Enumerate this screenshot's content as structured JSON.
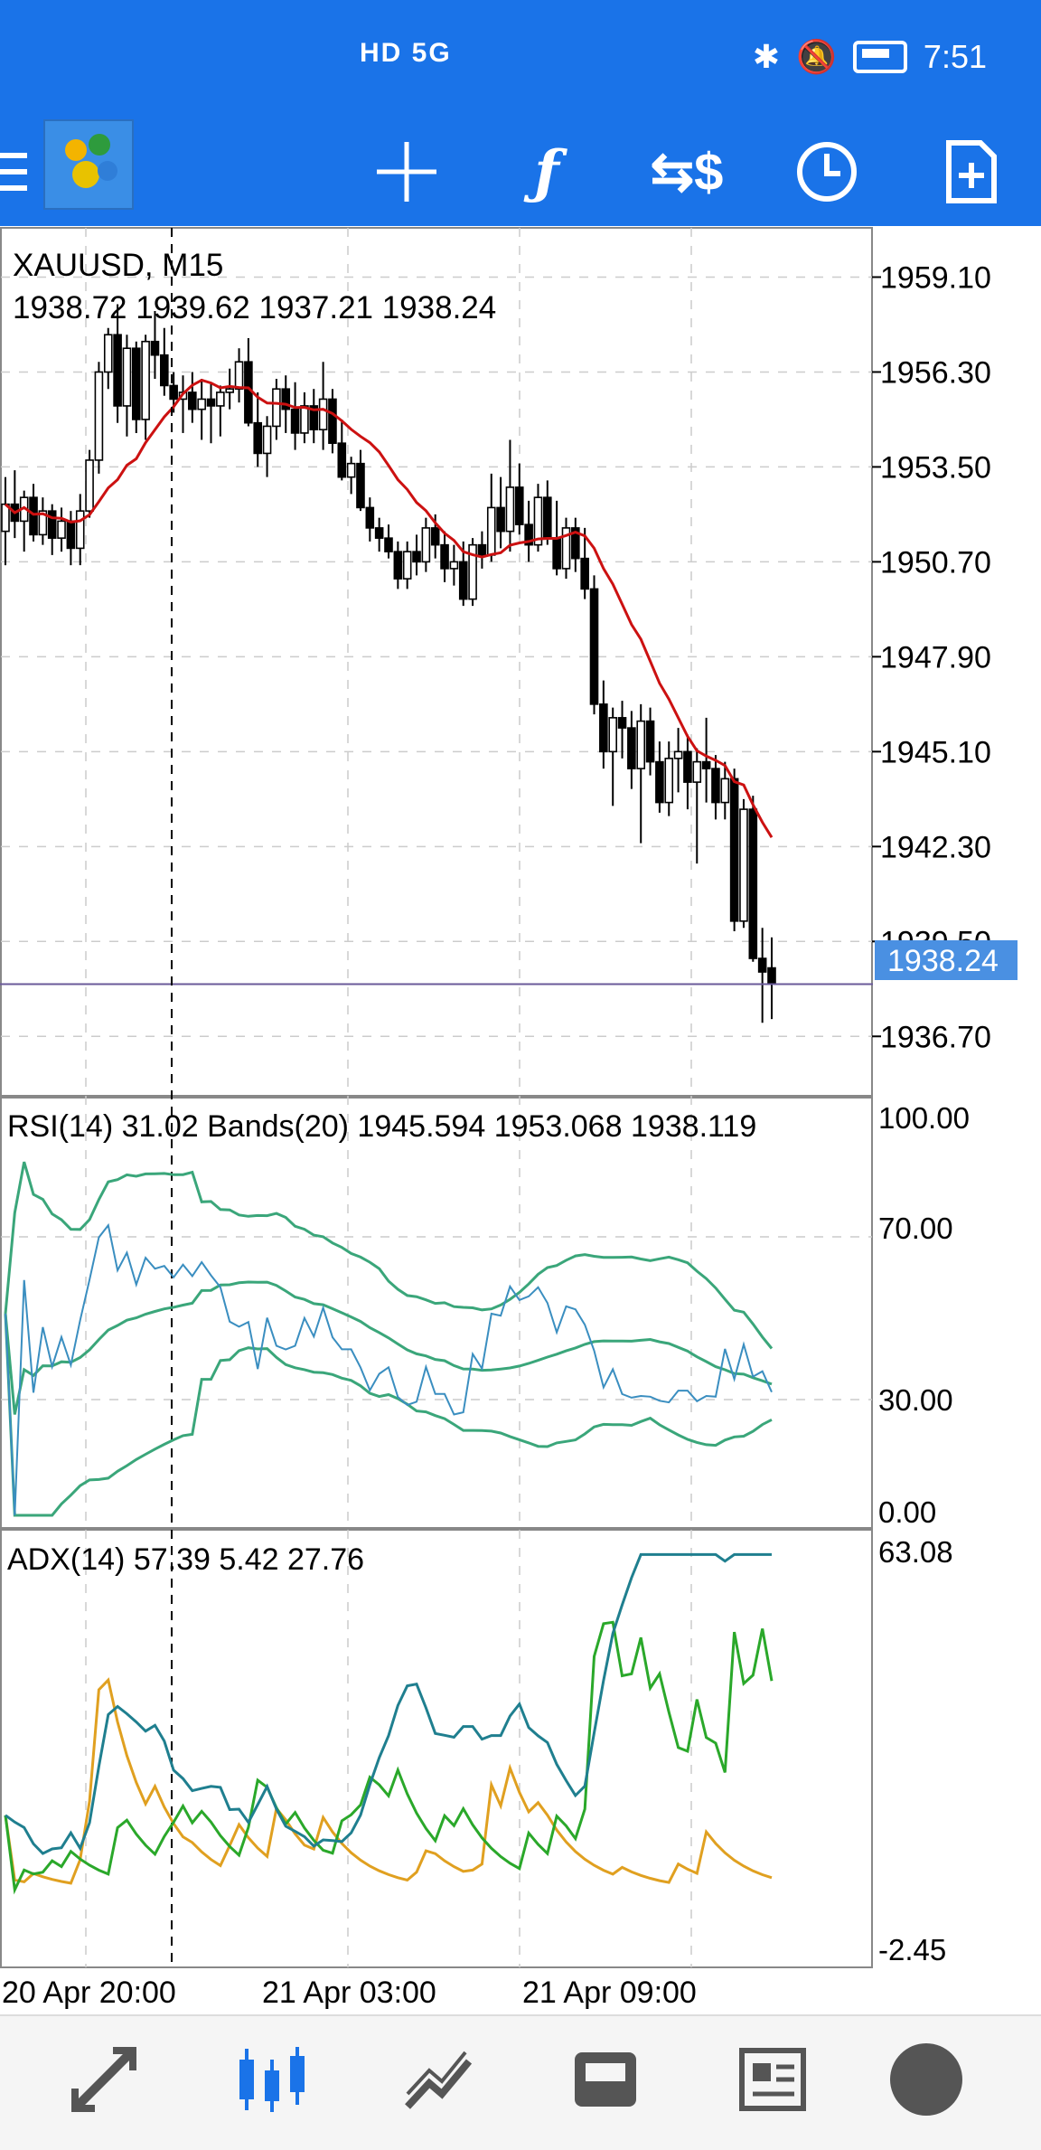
{
  "status": {
    "network": "HD 5G",
    "time": "7:51"
  },
  "toolbar": {
    "icons": [
      "menu-icon",
      "app-logo",
      "crosshair-icon",
      "indicators-icon",
      "trade-icon",
      "timeframe-icon",
      "new-order-icon"
    ]
  },
  "chart": {
    "symbol": "XAUUSD, M15",
    "ohlc": "1938.72 1939.62 1937.21 1938.24",
    "current_price": "1938.24",
    "price_labels": [
      "1959.10",
      "1956.30",
      "1953.50",
      "1950.70",
      "1947.90",
      "1945.10",
      "1942.30",
      "1939.50",
      "1936.70"
    ],
    "rsi_label": "RSI(14) 31.02 Bands(20) 1945.594 1953.068 1938.119",
    "rsi_levels": [
      "100.00",
      "70.00",
      "30.00",
      "0.00"
    ],
    "adx_label": "ADX(14) 57.39 5.42 27.76",
    "adx_levels": [
      "63.08",
      "-2.45"
    ],
    "time_labels": [
      "20 Apr 20:00",
      "21 Apr 03:00",
      "21 Apr 09:00"
    ],
    "colors": {
      "bull": "#ffffff",
      "bear": "#000000",
      "ma": "#cc1111",
      "rsi": "#3a8ec0",
      "bands": "#3aa67a",
      "adx_main": "#1f7f8f",
      "adx_plus": "#e0a020",
      "adx_minus": "#2aa82a",
      "price_tag": "#4a90e2"
    }
  },
  "chart_data": {
    "type": "candlestick",
    "title": "XAUUSD, M15",
    "ylim": [
      1935.0,
      1960.5
    ],
    "candles": [
      [
        1951.6,
        1953.2,
        1950.6,
        1952.4
      ],
      [
        1952.4,
        1953.4,
        1951.4,
        1951.9
      ],
      [
        1951.9,
        1952.8,
        1951.0,
        1952.6
      ],
      [
        1952.6,
        1953.0,
        1951.3,
        1951.5
      ],
      [
        1951.5,
        1952.6,
        1951.2,
        1952.2
      ],
      [
        1952.2,
        1952.4,
        1950.9,
        1951.4
      ],
      [
        1951.4,
        1952.3,
        1951.0,
        1951.9
      ],
      [
        1951.9,
        1952.2,
        1950.6,
        1951.1
      ],
      [
        1951.1,
        1952.7,
        1950.6,
        1952.2
      ],
      [
        1952.2,
        1954.0,
        1952.0,
        1953.7
      ],
      [
        1953.7,
        1956.6,
        1953.3,
        1956.3
      ],
      [
        1956.3,
        1957.6,
        1955.8,
        1957.4
      ],
      [
        1957.4,
        1958.3,
        1954.8,
        1955.3
      ],
      [
        1955.3,
        1957.4,
        1954.4,
        1957.0
      ],
      [
        1957.0,
        1957.2,
        1954.5,
        1954.9
      ],
      [
        1954.9,
        1957.4,
        1954.3,
        1957.2
      ],
      [
        1957.2,
        1958.1,
        1956.1,
        1956.8
      ],
      [
        1956.8,
        1957.6,
        1955.6,
        1955.9
      ],
      [
        1955.9,
        1956.3,
        1955.1,
        1955.5
      ],
      [
        1955.5,
        1956.2,
        1954.5,
        1955.7
      ],
      [
        1955.7,
        1956.3,
        1954.8,
        1955.2
      ],
      [
        1955.2,
        1956.1,
        1954.3,
        1955.5
      ],
      [
        1955.5,
        1956.0,
        1954.2,
        1955.3
      ],
      [
        1955.3,
        1955.9,
        1954.4,
        1955.7
      ],
      [
        1955.7,
        1956.4,
        1955.2,
        1955.8
      ],
      [
        1955.8,
        1957.0,
        1955.4,
        1956.6
      ],
      [
        1956.6,
        1957.3,
        1954.7,
        1954.8
      ],
      [
        1954.8,
        1955.7,
        1953.5,
        1953.9
      ],
      [
        1953.9,
        1955.0,
        1953.2,
        1954.7
      ],
      [
        1954.7,
        1956.1,
        1954.3,
        1955.8
      ],
      [
        1955.8,
        1956.2,
        1954.5,
        1955.2
      ],
      [
        1955.2,
        1956.0,
        1954.0,
        1954.5
      ],
      [
        1954.5,
        1955.7,
        1954.2,
        1955.3
      ],
      [
        1955.3,
        1955.8,
        1954.2,
        1954.6
      ],
      [
        1954.6,
        1956.6,
        1954.0,
        1955.5
      ],
      [
        1955.5,
        1955.8,
        1953.9,
        1954.2
      ],
      [
        1954.2,
        1954.9,
        1953.1,
        1953.2
      ],
      [
        1953.2,
        1953.8,
        1952.7,
        1953.6
      ],
      [
        1953.6,
        1954.0,
        1952.2,
        1952.3
      ],
      [
        1952.3,
        1952.6,
        1951.3,
        1951.7
      ],
      [
        1951.7,
        1952.0,
        1951.0,
        1951.4
      ],
      [
        1951.4,
        1951.8,
        1950.8,
        1951.0
      ],
      [
        1951.0,
        1951.3,
        1949.9,
        1950.2
      ],
      [
        1950.2,
        1951.3,
        1949.9,
        1951.0
      ],
      [
        1951.0,
        1951.5,
        1950.3,
        1950.7
      ],
      [
        1950.7,
        1952.0,
        1950.4,
        1951.7
      ],
      [
        1951.7,
        1952.1,
        1950.8,
        1951.2
      ],
      [
        1951.2,
        1951.6,
        1950.1,
        1950.5
      ],
      [
        1950.5,
        1951.2,
        1950.0,
        1950.7
      ],
      [
        1950.7,
        1951.3,
        1949.4,
        1949.6
      ],
      [
        1949.6,
        1951.4,
        1949.4,
        1951.2
      ],
      [
        1951.2,
        1951.6,
        1950.5,
        1950.9
      ],
      [
        1950.9,
        1953.3,
        1950.7,
        1952.3
      ],
      [
        1952.3,
        1953.2,
        1951.1,
        1951.6
      ],
      [
        1951.6,
        1954.3,
        1951.0,
        1952.9
      ],
      [
        1952.9,
        1953.6,
        1951.5,
        1951.8
      ],
      [
        1951.8,
        1952.5,
        1950.7,
        1951.2
      ],
      [
        1951.2,
        1953.0,
        1951.0,
        1952.6
      ],
      [
        1952.6,
        1953.1,
        1951.2,
        1951.4
      ],
      [
        1951.4,
        1952.5,
        1950.3,
        1950.5
      ],
      [
        1950.5,
        1952.0,
        1950.2,
        1951.7
      ],
      [
        1951.7,
        1952.0,
        1950.4,
        1950.8
      ],
      [
        1950.8,
        1951.7,
        1949.6,
        1949.9
      ],
      [
        1949.9,
        1950.3,
        1946.2,
        1946.5
      ],
      [
        1946.5,
        1947.2,
        1944.6,
        1945.1
      ],
      [
        1945.1,
        1946.4,
        1943.5,
        1946.1
      ],
      [
        1946.1,
        1946.6,
        1944.9,
        1945.8
      ],
      [
        1945.8,
        1946.3,
        1944.0,
        1944.6
      ],
      [
        1944.6,
        1946.5,
        1942.4,
        1946.0
      ],
      [
        1946.0,
        1946.4,
        1944.4,
        1944.8
      ],
      [
        1944.8,
        1945.4,
        1943.3,
        1943.6
      ],
      [
        1943.6,
        1945.4,
        1943.2,
        1944.9
      ],
      [
        1944.9,
        1945.8,
        1943.9,
        1945.1
      ],
      [
        1945.1,
        1945.6,
        1943.4,
        1944.2
      ],
      [
        1944.2,
        1945.2,
        1941.8,
        1944.8
      ],
      [
        1944.8,
        1946.1,
        1943.6,
        1944.6
      ],
      [
        1944.6,
        1945.0,
        1943.1,
        1943.6
      ],
      [
        1943.6,
        1944.8,
        1943.1,
        1944.3
      ],
      [
        1944.3,
        1944.6,
        1939.8,
        1940.1
      ],
      [
        1940.1,
        1943.7,
        1939.9,
        1943.4
      ],
      [
        1943.4,
        1943.8,
        1938.9,
        1939.0
      ],
      [
        1939.0,
        1939.9,
        1937.1,
        1938.6
      ],
      [
        1938.72,
        1939.62,
        1937.21,
        1938.24
      ]
    ]
  }
}
